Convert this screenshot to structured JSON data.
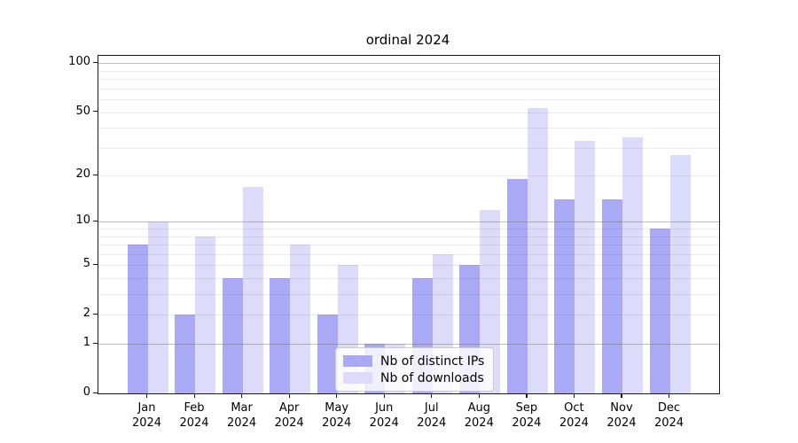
{
  "title": "ordinal 2024",
  "chart_data": {
    "type": "bar",
    "title": "ordinal 2024",
    "categories": [
      "Jan 2024",
      "Feb 2024",
      "Mar 2024",
      "Apr 2024",
      "May 2024",
      "Jun 2024",
      "Jul 2024",
      "Aug 2024",
      "Sep 2024",
      "Oct 2024",
      "Nov 2024",
      "Dec 2024"
    ],
    "series": [
      {
        "name": "Nb of distinct IPs",
        "color": "#a9a9f5",
        "values": [
          7,
          2,
          4,
          4,
          2,
          1,
          4,
          5,
          19,
          14,
          14,
          9
        ]
      },
      {
        "name": "Nb of downloads",
        "color": "#dcdcfa",
        "values": [
          10,
          8,
          17,
          7,
          5,
          1,
          6,
          12,
          53,
          33,
          35,
          27
        ]
      }
    ],
    "xlabel": "",
    "ylabel": "",
    "yscale": "log1p",
    "ylim": [
      0,
      111
    ],
    "y_ticks": [
      0,
      1,
      2,
      5,
      10,
      20,
      50,
      100
    ],
    "y_major_gridlines": [
      1,
      10,
      100
    ],
    "y_minor_gridlines": [
      2,
      3,
      4,
      5,
      6,
      7,
      8,
      9,
      20,
      30,
      40,
      50,
      60,
      70,
      80,
      90
    ],
    "grid": "horizontal",
    "legend_position": "lower center"
  },
  "legend": {
    "items": [
      {
        "label": "Nb of distinct IPs",
        "color": "#a9a9f5"
      },
      {
        "label": "Nb of downloads",
        "color": "#dcdcfa"
      }
    ]
  },
  "colors": {
    "distinct_ips_bar": "#a9a9f5",
    "downloads_bar": "#dcdcfa",
    "spine": "#1a1a1a",
    "major_grid": "#b0b0b0",
    "minor_grid": "#ececec",
    "background": "#ffffff",
    "text": "#000000"
  }
}
